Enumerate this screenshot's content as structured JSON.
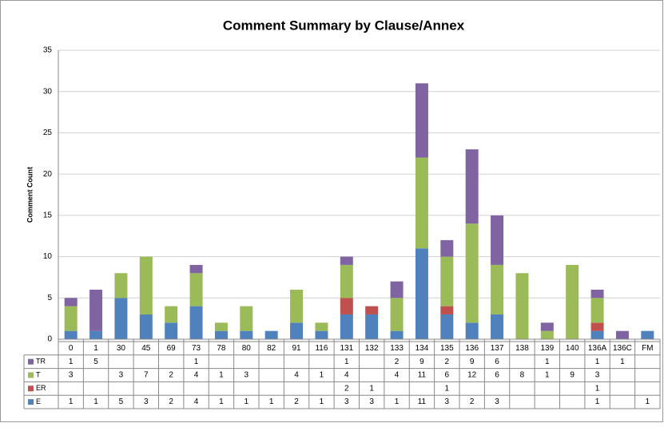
{
  "chart_data": {
    "type": "stacked_bar",
    "title": "Comment Summary by Clause/Annex",
    "y_label": "Comment Count",
    "categories": [
      "0",
      "1",
      "30",
      "45",
      "69",
      "73",
      "78",
      "80",
      "82",
      "91",
      "116",
      "131",
      "132",
      "133",
      "134",
      "135",
      "136",
      "137",
      "138",
      "139",
      "140",
      "136A",
      "136C",
      "FM"
    ],
    "series": [
      {
        "name": "TR",
        "color": "#8064a2",
        "values": [
          1,
          5,
          null,
          null,
          null,
          1,
          null,
          null,
          null,
          null,
          null,
          1,
          null,
          2,
          9,
          2,
          9,
          6,
          null,
          1,
          null,
          1,
          1,
          null
        ]
      },
      {
        "name": "T",
        "color": "#9bbb59",
        "values": [
          3,
          null,
          3,
          7,
          2,
          4,
          1,
          3,
          null,
          4,
          1,
          4,
          null,
          4,
          11,
          6,
          12,
          6,
          8,
          1,
          9,
          3,
          null,
          null
        ]
      },
      {
        "name": "ER",
        "color": "#c0504d",
        "values": [
          null,
          null,
          null,
          null,
          null,
          null,
          null,
          null,
          null,
          null,
          null,
          2,
          1,
          null,
          null,
          1,
          null,
          null,
          null,
          null,
          null,
          1,
          null,
          null
        ]
      },
      {
        "name": "E",
        "color": "#4f81bd",
        "values": [
          1,
          1,
          5,
          3,
          2,
          4,
          1,
          1,
          1,
          2,
          1,
          3,
          3,
          1,
          11,
          3,
          2,
          3,
          null,
          null,
          null,
          1,
          null,
          1
        ]
      }
    ],
    "ylim": [
      0,
      35
    ],
    "yticks": [
      0,
      5,
      10,
      15,
      20,
      25,
      30,
      35
    ],
    "grid": true
  }
}
